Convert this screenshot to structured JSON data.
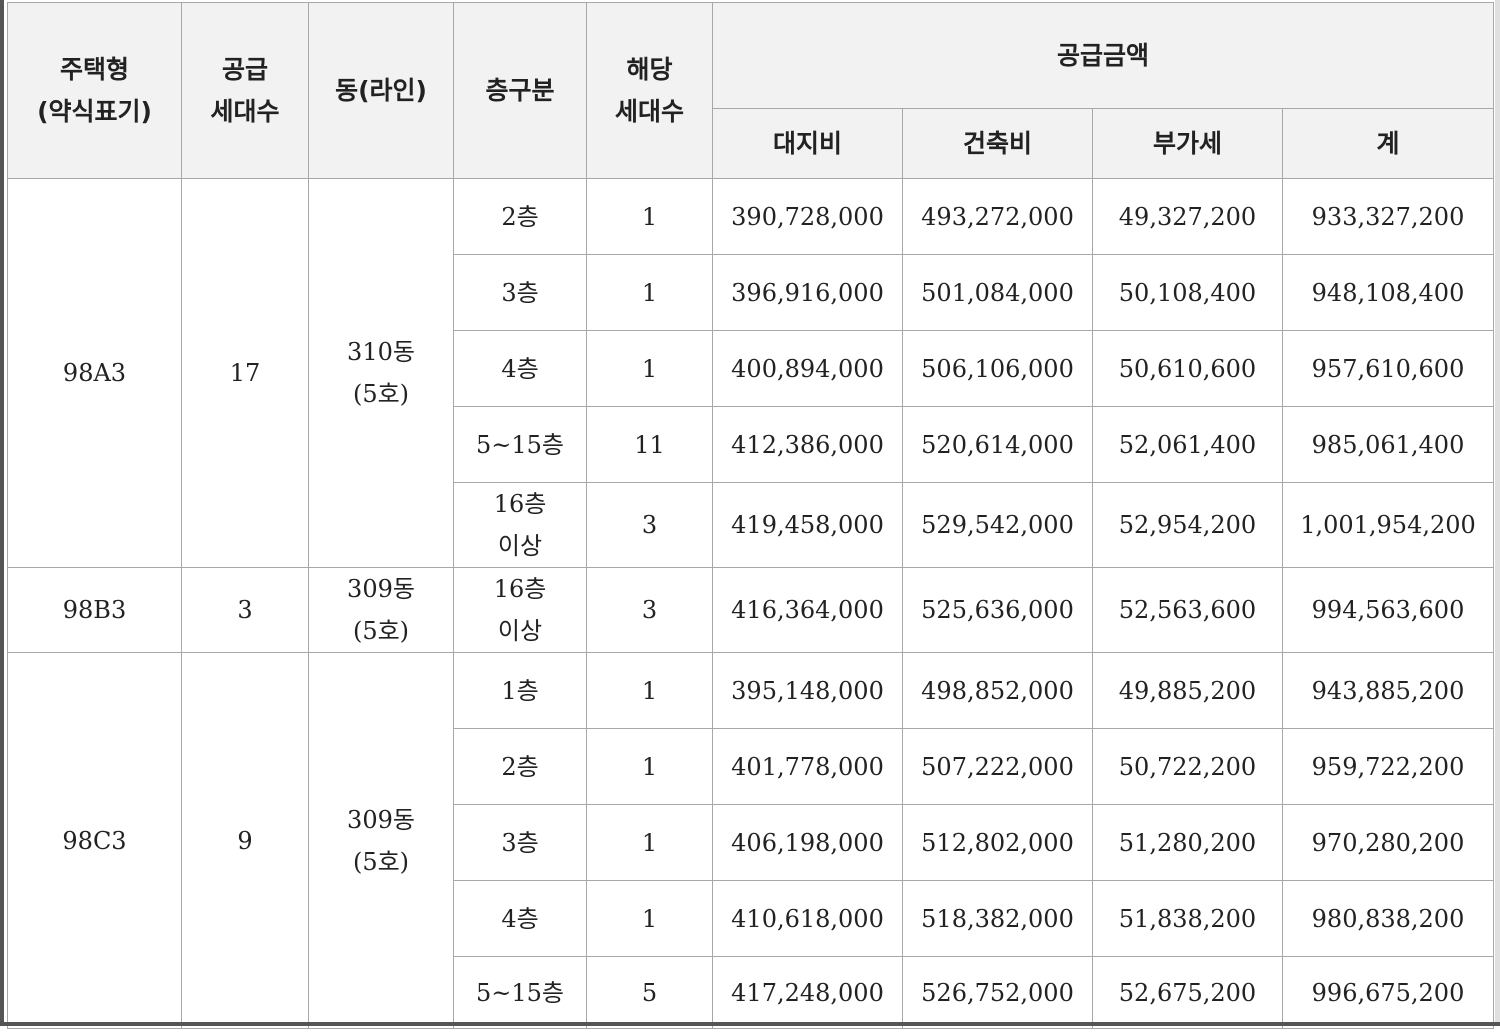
{
  "header": {
    "house_type": "주택형\n(약식표기)",
    "supply_units": "공급\n세대수",
    "building_line": "동(라인)",
    "floor_group": "층구분",
    "applicable_units": "해당\n세대수",
    "supply_amount": "공급금액",
    "land_cost": "대지비",
    "building_cost": "건축비",
    "vat": "부가세",
    "total": "계"
  },
  "groups": [
    {
      "type": "98A3",
      "units": "17",
      "building": "310동\n(5호)",
      "rows": [
        {
          "floor": "2층",
          "count": "1",
          "land": "390,728,000",
          "build": "493,272,000",
          "vat": "49,327,200",
          "total": "933,327,200"
        },
        {
          "floor": "3층",
          "count": "1",
          "land": "396,916,000",
          "build": "501,084,000",
          "vat": "50,108,400",
          "total": "948,108,400"
        },
        {
          "floor": "4층",
          "count": "1",
          "land": "400,894,000",
          "build": "506,106,000",
          "vat": "50,610,600",
          "total": "957,610,600"
        },
        {
          "floor": "5~15층",
          "count": "11",
          "land": "412,386,000",
          "build": "520,614,000",
          "vat": "52,061,400",
          "total": "985,061,400"
        },
        {
          "floor": "16층\n이상",
          "count": "3",
          "land": "419,458,000",
          "build": "529,542,000",
          "vat": "52,954,200",
          "total": "1,001,954,200"
        }
      ]
    },
    {
      "type": "98B3",
      "units": "3",
      "building": "309동\n(5호)",
      "rows": [
        {
          "floor": "16층\n이상",
          "count": "3",
          "land": "416,364,000",
          "build": "525,636,000",
          "vat": "52,563,600",
          "total": "994,563,600"
        }
      ]
    },
    {
      "type": "98C3",
      "units": "9",
      "building": "309동\n(5호)",
      "rows": [
        {
          "floor": "1층",
          "count": "1",
          "land": "395,148,000",
          "build": "498,852,000",
          "vat": "49,885,200",
          "total": "943,885,200"
        },
        {
          "floor": "2층",
          "count": "1",
          "land": "401,778,000",
          "build": "507,222,000",
          "vat": "50,722,200",
          "total": "959,722,200"
        },
        {
          "floor": "3층",
          "count": "1",
          "land": "406,198,000",
          "build": "512,802,000",
          "vat": "51,280,200",
          "total": "970,280,200"
        },
        {
          "floor": "4층",
          "count": "1",
          "land": "410,618,000",
          "build": "518,382,000",
          "vat": "51,838,200",
          "total": "980,838,200"
        },
        {
          "floor": "5~15층",
          "count": "5",
          "land": "417,248,000",
          "build": "526,752,000",
          "vat": "52,675,200",
          "total": "996,675,200"
        }
      ]
    }
  ]
}
